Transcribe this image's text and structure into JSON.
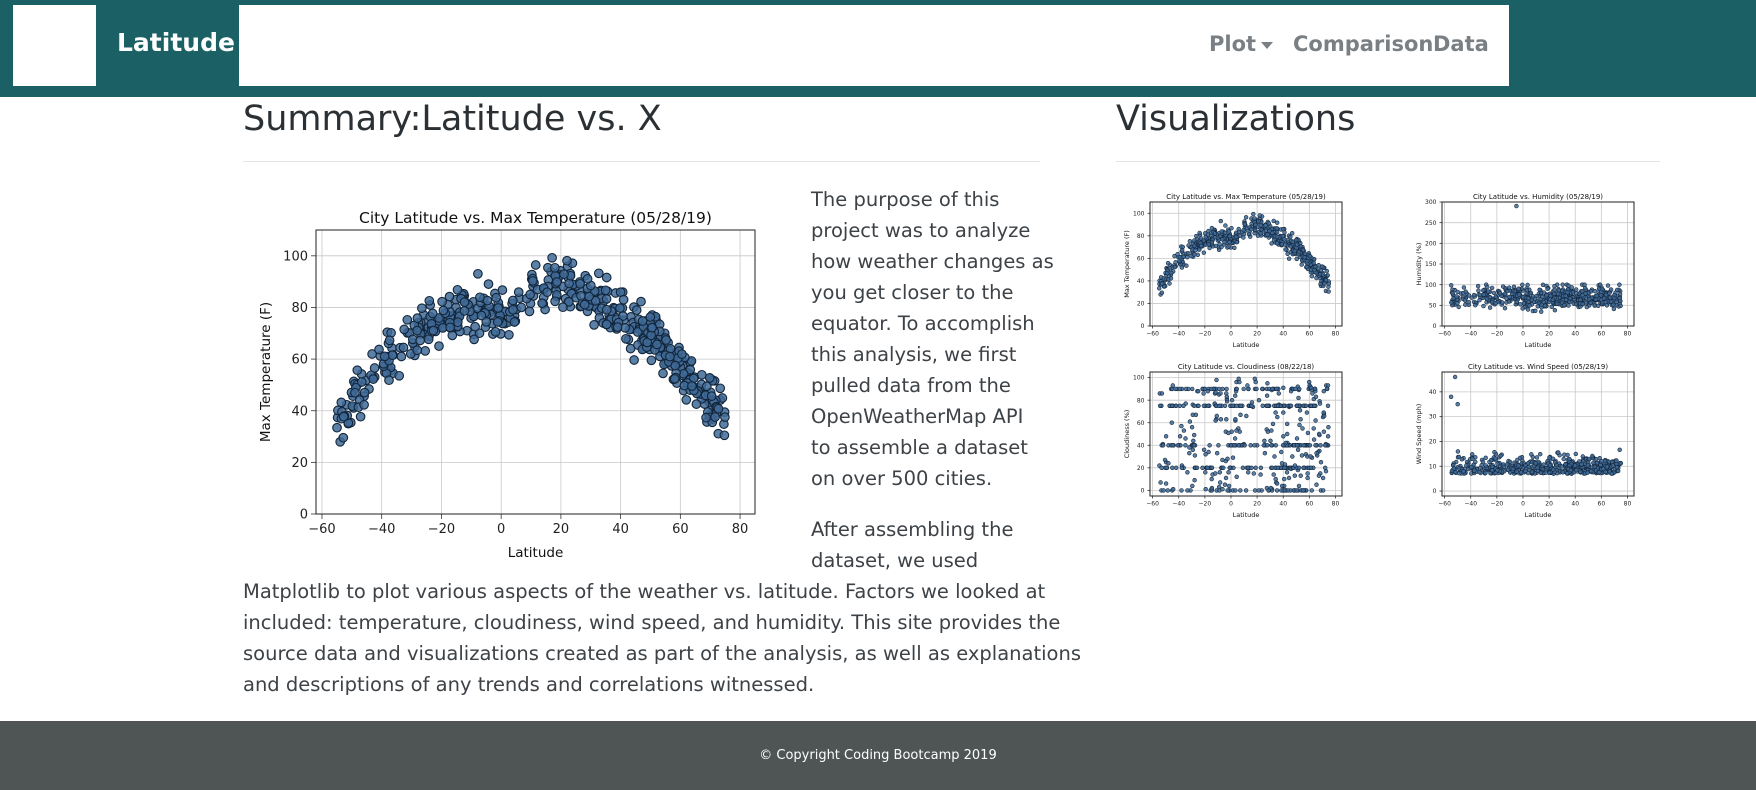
{
  "navbar": {
    "brand": "Latitude",
    "items": [
      {
        "label": "Plot",
        "has_dropdown": true
      },
      {
        "label": "Comparison"
      },
      {
        "label": "Data"
      }
    ]
  },
  "summary": {
    "heading": "Summary:Latitude vs. X",
    "paragraph1_lines": [
      "The purpose of this",
      "project was to analyze",
      "how weather changes as",
      "you get closer to the",
      "equator. To accomplish",
      "this analysis, we first",
      "pulled data from the",
      "OpenWeatherMap API",
      "to assemble a dataset",
      "on over 500 cities."
    ],
    "paragraph2_side_lines": [
      "After assembling the",
      "dataset, we used"
    ],
    "paragraph2_full_lines": [
      "Matplotlib to plot various aspects of the weather vs. latitude. Factors we looked at",
      "included: temperature, cloudiness, wind speed, and humidity. This site provides the",
      "source data and visualizations created as part of the analysis, as well as explanations",
      "and descriptions of any trends and correlations witnessed."
    ]
  },
  "visualizations": {
    "heading": "Visualizations"
  },
  "footer": {
    "text": "© Copyright Coding Bootcamp 2019"
  },
  "colors": {
    "navbar_bg": "#1b6064",
    "footer_bg": "#4f5554",
    "marker_fill": "#3f6a96",
    "marker_edge": "#12253a"
  },
  "chart_data": [
    {
      "type": "scatter",
      "id": "main-temp",
      "title": "City Latitude vs. Max Temperature (05/28/19)",
      "xlabel": "Latitude",
      "ylabel": "Max Temperature (F)",
      "xlim": [
        -62,
        85
      ],
      "ylim": [
        0,
        110
      ],
      "xticks": [
        -60,
        -40,
        -20,
        0,
        20,
        40,
        60,
        80
      ],
      "xtick_labels": [
        "−60",
        "−40",
        "−20",
        "0",
        "20",
        "40",
        "60",
        "80"
      ],
      "yticks": [
        0,
        20,
        40,
        60,
        80,
        100
      ],
      "ytick_labels": [
        "0",
        "20",
        "40",
        "60",
        "80",
        "100"
      ],
      "grid": true,
      "seed": 11,
      "model": "temp"
    },
    {
      "type": "scatter",
      "id": "thumb-temp",
      "title": "City Latitude vs. Max Temperature (05/28/19)",
      "xlabel": "Latitude",
      "ylabel": "Max Temperature (F)",
      "xlim": [
        -62,
        85
      ],
      "ylim": [
        0,
        110
      ],
      "xticks": [
        -60,
        -40,
        -20,
        0,
        20,
        40,
        60,
        80
      ],
      "xtick_labels": [
        "−60",
        "−40",
        "−20",
        "0",
        "20",
        "40",
        "60",
        "80"
      ],
      "yticks": [
        0,
        20,
        40,
        60,
        80,
        100
      ],
      "ytick_labels": [
        "0",
        "20",
        "40",
        "60",
        "80",
        "100"
      ],
      "grid": true,
      "seed": 11,
      "model": "temp"
    },
    {
      "type": "scatter",
      "id": "thumb-humidity",
      "title": "City Latitude vs. Humidity (05/28/19)",
      "xlabel": "Latitude",
      "ylabel": "Humidity (%)",
      "xlim": [
        -62,
        85
      ],
      "ylim": [
        0,
        300
      ],
      "xticks": [
        -60,
        -40,
        -20,
        0,
        20,
        40,
        60,
        80
      ],
      "xtick_labels": [
        "−60",
        "−40",
        "−20",
        "0",
        "20",
        "40",
        "60",
        "80"
      ],
      "yticks": [
        0,
        50,
        100,
        150,
        200,
        250,
        300
      ],
      "ytick_labels": [
        "0",
        "50",
        "100",
        "150",
        "200",
        "250",
        "300"
      ],
      "grid": true,
      "seed": 23,
      "model": "humidity"
    },
    {
      "type": "scatter",
      "id": "thumb-cloud",
      "title": "City Latitude vs. Cloudiness (08/22/18)",
      "xlabel": "Latitude",
      "ylabel": "Cloudiness (%)",
      "xlim": [
        -62,
        85
      ],
      "ylim": [
        -5,
        105
      ],
      "xticks": [
        -60,
        -40,
        -20,
        0,
        20,
        40,
        60,
        80
      ],
      "xtick_labels": [
        "−60",
        "−40",
        "−20",
        "0",
        "20",
        "40",
        "60",
        "80"
      ],
      "yticks": [
        0,
        20,
        40,
        60,
        80,
        100
      ],
      "ytick_labels": [
        "0",
        "20",
        "40",
        "60",
        "80",
        "100"
      ],
      "grid": true,
      "seed": 37,
      "model": "cloud"
    },
    {
      "type": "scatter",
      "id": "thumb-wind",
      "title": "City Latitude vs. Wind Speed (05/28/19)",
      "xlabel": "Latitude",
      "ylabel": "Wind Speed (mph)",
      "xlim": [
        -62,
        85
      ],
      "ylim": [
        -2,
        48
      ],
      "xticks": [
        -60,
        -40,
        -20,
        0,
        20,
        40,
        60,
        80
      ],
      "xtick_labels": [
        "−60",
        "−40",
        "−20",
        "0",
        "20",
        "40",
        "60",
        "80"
      ],
      "yticks": [
        0,
        10,
        20,
        30,
        40
      ],
      "ytick_labels": [
        "0",
        "10",
        "20",
        "30",
        "40"
      ],
      "grid": true,
      "seed": 53,
      "model": "wind"
    }
  ]
}
